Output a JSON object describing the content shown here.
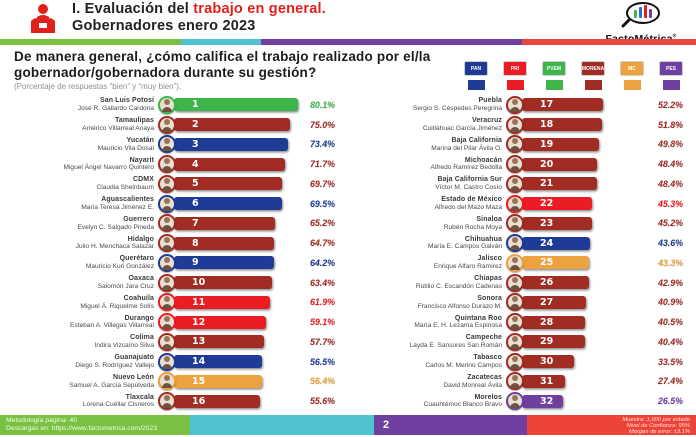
{
  "header": {
    "title_prefix": "I. Evaluación del ",
    "title_highlight": "trabajo en general.",
    "title_line2": "Gobernadores enero 2023",
    "logo_text": "FactoMétrica",
    "logo_reg": "®"
  },
  "question": {
    "text": "De manera general, ¿cómo califica el trabajo realizado por el/la gobernador/gobernadora durante su gestión?",
    "note": "(Porcentaje de respuestas “bien” y “muy bien”)."
  },
  "party_colors": {
    "pan": "#1e3c96",
    "pri": "#ec1c24",
    "pvem": "#3db54a",
    "morena": "#a02c24",
    "mc": "#eca23f",
    "pes": "#7040a0"
  },
  "parties": [
    {
      "id": "pan",
      "name": "PAN",
      "color": "#1e3c96"
    },
    {
      "id": "pri",
      "name": "PRI",
      "color": "#ec1c24"
    },
    {
      "id": "pvem",
      "name": "PVEM",
      "color": "#3db54a"
    },
    {
      "id": "morena",
      "name": "MORENA",
      "color": "#a02c24"
    },
    {
      "id": "mc",
      "name": "MC",
      "color": "#eca23f"
    },
    {
      "id": "pes",
      "name": "PES",
      "color": "#7040a0"
    }
  ],
  "chart_data": {
    "type": "bar",
    "title": "Evaluación del trabajo en general — Gobernadores enero 2023",
    "unit": "%",
    "value_range": [
      0,
      85
    ],
    "rankings": [
      {
        "rank": 1,
        "state": "San Luis Potosí",
        "governor": "José R. Gallardo Cardona",
        "party": "pvem",
        "value": 80.1
      },
      {
        "rank": 2,
        "state": "Tamaulipas",
        "governor": "Américo Villarreal Anaya",
        "party": "morena",
        "value": 75.0
      },
      {
        "rank": 3,
        "state": "Yucatán",
        "governor": "Mauricio Vila Dosal",
        "party": "pan",
        "value": 73.4
      },
      {
        "rank": 4,
        "state": "Nayarit",
        "governor": "Miguel Ángel Navarro Quintero",
        "party": "morena",
        "value": 71.7
      },
      {
        "rank": 5,
        "state": "CDMX",
        "governor": "Claudia Sheinbaum",
        "party": "morena",
        "value": 69.7
      },
      {
        "rank": 6,
        "state": "Aguascalientes",
        "governor": "María Teresa Jiménez E.",
        "party": "pan",
        "value": 69.5
      },
      {
        "rank": 7,
        "state": "Guerrero",
        "governor": "Evelyn C. Salgado Pineda",
        "party": "morena",
        "value": 65.2
      },
      {
        "rank": 8,
        "state": "Hidalgo",
        "governor": "Julio H. Menchaca Salazar",
        "party": "morena",
        "value": 64.7
      },
      {
        "rank": 9,
        "state": "Querétaro",
        "governor": "Mauricio Kuri González",
        "party": "pan",
        "value": 64.2
      },
      {
        "rank": 10,
        "state": "Oaxaca",
        "governor": "Salomón Jara Cruz",
        "party": "morena",
        "value": 63.4
      },
      {
        "rank": 11,
        "state": "Coahuila",
        "governor": "Miguel Á. Riquelme Solís",
        "party": "pri",
        "value": 61.9
      },
      {
        "rank": 12,
        "state": "Durango",
        "governor": "Esteban A. Villegas Villarreal",
        "party": "pri",
        "value": 59.1
      },
      {
        "rank": 13,
        "state": "Colima",
        "governor": "Indira Vizcaíno Silva",
        "party": "morena",
        "value": 57.7
      },
      {
        "rank": 14,
        "state": "Guanajuato",
        "governor": "Diego S. Rodríguez Vallejo",
        "party": "pan",
        "value": 56.5
      },
      {
        "rank": 15,
        "state": "Nuevo León",
        "governor": "Samuel A. García Sepúlveda",
        "party": "mc",
        "value": 56.4
      },
      {
        "rank": 16,
        "state": "Tlaxcala",
        "governor": "Lorena Cuéllar Cisneros",
        "party": "morena",
        "value": 55.6
      },
      {
        "rank": 17,
        "state": "Puebla",
        "governor": "Sergio S. Céspedes Peregrina",
        "party": "morena",
        "value": 52.2
      },
      {
        "rank": 18,
        "state": "Veracruz",
        "governor": "Cuitláhuac García Jiménez",
        "party": "morena",
        "value": 51.8
      },
      {
        "rank": 19,
        "state": "Baja California",
        "governor": "Marina del Pilar Ávila O.",
        "party": "morena",
        "value": 49.8
      },
      {
        "rank": 20,
        "state": "Michoacán",
        "governor": "Alfredo Ramírez Bedolla",
        "party": "morena",
        "value": 48.4
      },
      {
        "rank": 21,
        "state": "Baja California Sur",
        "governor": "Víctor M. Castro Cosío",
        "party": "morena",
        "value": 48.4
      },
      {
        "rank": 22,
        "state": "Estado de México",
        "governor": "Alfredo del Mazo Maza",
        "party": "pri",
        "value": 45.3
      },
      {
        "rank": 23,
        "state": "Sinaloa",
        "governor": "Rubén Rocha Moya",
        "party": "morena",
        "value": 45.2
      },
      {
        "rank": 24,
        "state": "Chihuahua",
        "governor": "María E. Campos Galván",
        "party": "pan",
        "value": 43.6
      },
      {
        "rank": 25,
        "state": "Jalisco",
        "governor": "Enrique Alfaro Ramírez",
        "party": "mc",
        "value": 43.3
      },
      {
        "rank": 26,
        "state": "Chiapas",
        "governor": "Rutilio C. Escandón Cadenas",
        "party": "morena",
        "value": 42.9
      },
      {
        "rank": 27,
        "state": "Sonora",
        "governor": "Francisco Alfonso Durazo M.",
        "party": "morena",
        "value": 40.9
      },
      {
        "rank": 28,
        "state": "Quintana Roo",
        "governor": "María E. H. Lezama Espinosa",
        "party": "morena",
        "value": 40.5
      },
      {
        "rank": 29,
        "state": "Campeche",
        "governor": "Layda E. Sansores San Román",
        "party": "morena",
        "value": 40.4
      },
      {
        "rank": 30,
        "state": "Tabasco",
        "governor": "Carlos M. Merino Campos",
        "party": "morena",
        "value": 33.5
      },
      {
        "rank": 31,
        "state": "Zacatecas",
        "governor": "David Monreal Ávila",
        "party": "morena",
        "value": 27.4
      },
      {
        "rank": 32,
        "state": "Morelos",
        "governor": "Cuauhtémoc Blanco Bravo",
        "party": "pes",
        "value": 26.5
      }
    ]
  },
  "footer": {
    "methodology": "Metodología página: 40",
    "download": "Descargas en: https://www.factometrica.com/2023",
    "page_number": "2",
    "sample": "Muestra: 1,000 por estado",
    "confidence": "Nivel de Confianza: 95%",
    "error_margin": "Margen de error: ±3.1%"
  }
}
